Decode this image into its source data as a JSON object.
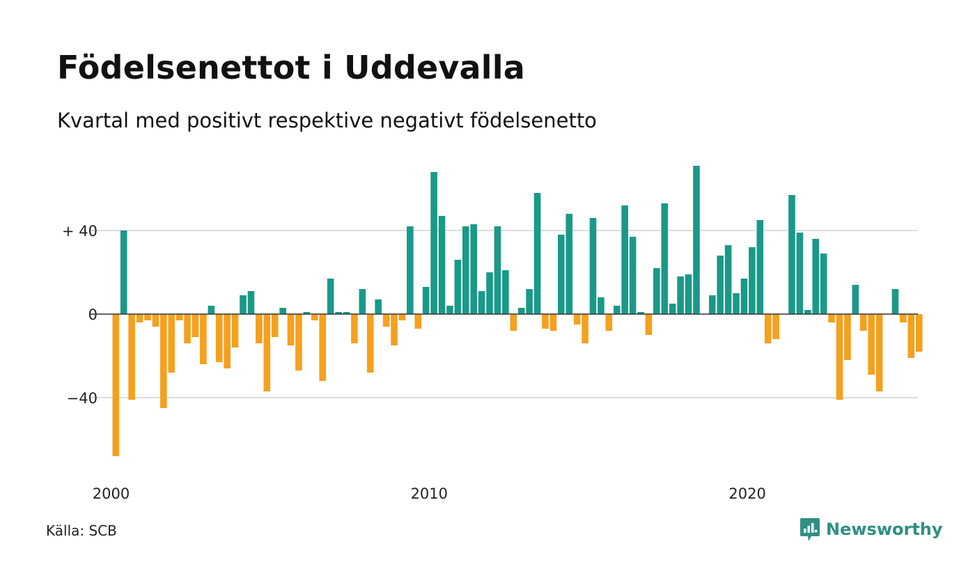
{
  "title": "Födelsenettot i Uddevalla",
  "subtitle": "Kvartal med positivt respektive negativt födelsenetto",
  "source": "Källa: SCB",
  "brand": {
    "name": "Newsworthy",
    "icon": "newsworthy-logo-icon",
    "color": "#2f8f84"
  },
  "colors": {
    "positive": "#1a9988",
    "negative": "#f5a01f",
    "grid": "#dddddd",
    "zero_line": "#333333"
  },
  "chart_data": {
    "type": "bar",
    "title": "Födelsenettot i Uddevalla",
    "subtitle": "Kvartal med positivt respektive negativt födelsenetto",
    "xlabel": "",
    "ylabel": "",
    "x_start": "2000 Q1",
    "x_ticks": [
      "2000",
      "2010",
      "2020"
    ],
    "y_ticks": [
      {
        "value": 40,
        "label": "+ 40"
      },
      {
        "value": 0,
        "label": "0"
      },
      {
        "value": -40,
        "label": "−40"
      }
    ],
    "ylim": [
      -70,
      73
    ],
    "grid": true,
    "legend": "none",
    "values": [
      -68,
      40,
      -41,
      -4,
      -3,
      -6,
      -45,
      -28,
      -3,
      -14,
      -11,
      -24,
      4,
      -23,
      -26,
      -16,
      9,
      11,
      -14,
      -37,
      -11,
      3,
      -15,
      -27,
      1,
      -3,
      -32,
      17,
      1,
      1,
      -14,
      12,
      -28,
      7,
      -6,
      -15,
      -3,
      42,
      -7,
      13,
      68,
      47,
      4,
      26,
      42,
      43,
      11,
      20,
      42,
      21,
      -8,
      3,
      12,
      58,
      -7,
      -8,
      38,
      48,
      -5,
      -14,
      46,
      8,
      -8,
      4,
      52,
      37,
      1,
      -10,
      22,
      53,
      5,
      18,
      19,
      71,
      0,
      9,
      28,
      33,
      10,
      17,
      32,
      45,
      -14,
      -12,
      0,
      57,
      39,
      2,
      36,
      29,
      -4,
      -41,
      -22,
      14,
      -8,
      -29,
      -37,
      0,
      12,
      -4,
      -21,
      -18
    ]
  }
}
